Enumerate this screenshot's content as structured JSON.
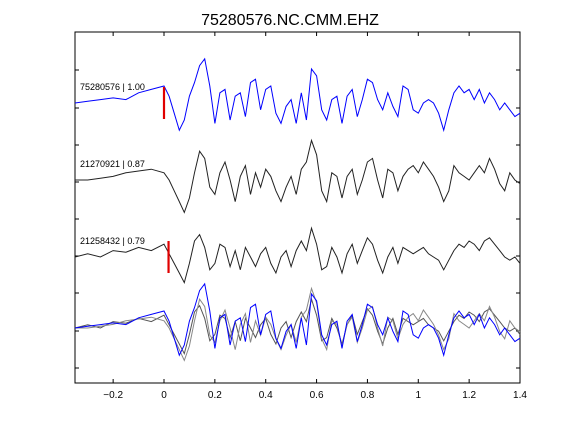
{
  "chart_data": {
    "type": "line",
    "title": "75280576.NC.CMM.EHZ",
    "xlabel": "",
    "ylabel": "",
    "xlim": [
      -0.35,
      1.4
    ],
    "xticks": [
      -0.2,
      0,
      0.2,
      0.4,
      0.6,
      0.8,
      1,
      1.2,
      1.4
    ],
    "xtick_labels": [
      "−0.2",
      "0",
      "0.2",
      "0.4",
      "0.6",
      "0.8",
      "1",
      "1.2",
      "1.4"
    ],
    "grid": false,
    "colors": {
      "target": "#0000ff",
      "similar": "#222222",
      "overlay_grey": "#888888",
      "pick": "#e00000"
    },
    "traces": [
      {
        "label": "75280576 | 1.00",
        "color": "#0000ff",
        "pick_time": 0.0,
        "x": [
          -0.35,
          -0.3,
          -0.25,
          -0.2,
          -0.15,
          -0.1,
          -0.05,
          0,
          0.02,
          0.04,
          0.06,
          0.08,
          0.1,
          0.12,
          0.14,
          0.16,
          0.18,
          0.2,
          0.22,
          0.24,
          0.26,
          0.28,
          0.3,
          0.32,
          0.34,
          0.36,
          0.38,
          0.4,
          0.42,
          0.44,
          0.46,
          0.48,
          0.5,
          0.52,
          0.54,
          0.56,
          0.58,
          0.6,
          0.62,
          0.64,
          0.66,
          0.68,
          0.7,
          0.72,
          0.74,
          0.76,
          0.78,
          0.8,
          0.82,
          0.84,
          0.86,
          0.88,
          0.9,
          0.92,
          0.94,
          0.96,
          0.98,
          1,
          1.02,
          1.04,
          1.06,
          1.08,
          1.1,
          1.12,
          1.14,
          1.16,
          1.18,
          1.2,
          1.22,
          1.24,
          1.26,
          1.28,
          1.3,
          1.32,
          1.34,
          1.36,
          1.38,
          1.4
        ],
        "y": [
          0,
          0.05,
          0.1,
          0.15,
          0.1,
          0.3,
          0.4,
          0.5,
          0.2,
          -0.3,
          -0.8,
          -0.5,
          0.2,
          0.6,
          1.1,
          1.3,
          0.5,
          -0.6,
          0.3,
          0.4,
          -0.5,
          0.2,
          0.3,
          -0.4,
          0.6,
          0.7,
          -0.2,
          0.4,
          0.5,
          -0.3,
          -0.6,
          -0.1,
          0.1,
          -0.6,
          0.3,
          -0.5,
          1.0,
          0.8,
          -0.2,
          -0.5,
          0.1,
          0.2,
          -0.6,
          0.2,
          0.4,
          -0.4,
          0.1,
          0.7,
          0.6,
          0.1,
          -0.2,
          0.3,
          -0.1,
          -0.4,
          0.5,
          0.4,
          -0.2,
          -0.3,
          0.0,
          0.1,
          0.0,
          -0.3,
          -0.8,
          -0.2,
          0.3,
          0.5,
          0.3,
          0.4,
          0.1,
          0.4,
          0.0,
          0.3,
          0.1,
          -0.2,
          0.0,
          -0.2,
          -0.4,
          -0.3
        ]
      },
      {
        "label": "21270921 | 0.87",
        "color": "#222222",
        "pick_time": null,
        "x": [
          -0.35,
          -0.3,
          -0.25,
          -0.2,
          -0.15,
          -0.1,
          -0.05,
          0,
          0.02,
          0.04,
          0.06,
          0.08,
          0.1,
          0.12,
          0.14,
          0.16,
          0.18,
          0.2,
          0.22,
          0.24,
          0.26,
          0.28,
          0.3,
          0.32,
          0.34,
          0.36,
          0.38,
          0.4,
          0.42,
          0.44,
          0.46,
          0.48,
          0.5,
          0.52,
          0.54,
          0.56,
          0.58,
          0.6,
          0.62,
          0.64,
          0.66,
          0.68,
          0.7,
          0.72,
          0.74,
          0.76,
          0.78,
          0.8,
          0.82,
          0.84,
          0.86,
          0.88,
          0.9,
          0.92,
          0.94,
          0.96,
          0.98,
          1,
          1.02,
          1.04,
          1.06,
          1.08,
          1.1,
          1.12,
          1.14,
          1.16,
          1.18,
          1.2,
          1.22,
          1.24,
          1.26,
          1.28,
          1.3,
          1.32,
          1.34,
          1.36,
          1.38,
          1.4
        ],
        "y": [
          0,
          0,
          0.05,
          0.1,
          0.2,
          0.25,
          0.3,
          0.2,
          0.0,
          -0.3,
          -0.6,
          -0.9,
          -0.5,
          0.2,
          0.8,
          0.6,
          -0.2,
          -0.4,
          0.2,
          0.5,
          0.0,
          -0.6,
          0.1,
          0.4,
          -0.4,
          0.2,
          -0.2,
          0.3,
          0.1,
          -0.3,
          -0.6,
          -0.2,
          0.1,
          -0.4,
          0.3,
          0.5,
          1.1,
          0.7,
          -0.3,
          -0.6,
          0.2,
          0.1,
          -0.5,
          0.1,
          0.3,
          -0.4,
          0.0,
          0.5,
          0.6,
          0.0,
          -0.5,
          0.3,
          0.2,
          -0.3,
          0.1,
          0.3,
          0.4,
          0.2,
          0.5,
          0.3,
          0.1,
          -0.2,
          -0.6,
          -0.3,
          0.4,
          0.2,
          0.1,
          0.0,
          0.2,
          0.4,
          0.2,
          0.6,
          0.3,
          -0.1,
          -0.3,
          0.2,
          0.0,
          -0.1
        ]
      },
      {
        "label": "21258432 | 0.79",
        "color": "#222222",
        "pick_time": 0.01,
        "x": [
          -0.35,
          -0.3,
          -0.25,
          -0.2,
          -0.15,
          -0.1,
          -0.05,
          0,
          0.02,
          0.04,
          0.06,
          0.08,
          0.1,
          0.12,
          0.14,
          0.16,
          0.18,
          0.2,
          0.22,
          0.24,
          0.26,
          0.28,
          0.3,
          0.32,
          0.34,
          0.36,
          0.38,
          0.4,
          0.42,
          0.44,
          0.46,
          0.48,
          0.5,
          0.52,
          0.54,
          0.56,
          0.58,
          0.6,
          0.62,
          0.64,
          0.66,
          0.68,
          0.7,
          0.72,
          0.74,
          0.76,
          0.78,
          0.8,
          0.82,
          0.84,
          0.86,
          0.88,
          0.9,
          0.92,
          0.94,
          0.96,
          0.98,
          1,
          1.02,
          1.04,
          1.06,
          1.08,
          1.1,
          1.12,
          1.14,
          1.16,
          1.18,
          1.2,
          1.22,
          1.24,
          1.26,
          1.28,
          1.3,
          1.32,
          1.34,
          1.36,
          1.38,
          1.4
        ],
        "y": [
          0,
          0.1,
          0.0,
          0.2,
          0.15,
          0.3,
          0.2,
          0.4,
          0.1,
          -0.2,
          -0.5,
          -0.8,
          -0.2,
          0.5,
          0.7,
          0.3,
          -0.4,
          -0.2,
          0.4,
          0.3,
          -0.3,
          0.2,
          -0.4,
          0.3,
          0.0,
          -0.3,
          0.1,
          0.3,
          -0.2,
          -0.5,
          0.0,
          0.2,
          -0.3,
          0.2,
          0.5,
          0.2,
          0.9,
          0.4,
          -0.4,
          -0.3,
          0.3,
          0.0,
          -0.5,
          0.1,
          0.4,
          -0.2,
          0.2,
          0.6,
          0.4,
          -0.1,
          -0.5,
          0.0,
          0.3,
          -0.2,
          0.3,
          0.2,
          0.1,
          0.2,
          0.3,
          0.1,
          0.0,
          -0.1,
          -0.4,
          -0.1,
          0.2,
          0.4,
          0.3,
          0.5,
          0.4,
          0.2,
          0.5,
          0.6,
          0.4,
          0.2,
          0.0,
          -0.1,
          0.0,
          -0.2
        ]
      }
    ]
  }
}
